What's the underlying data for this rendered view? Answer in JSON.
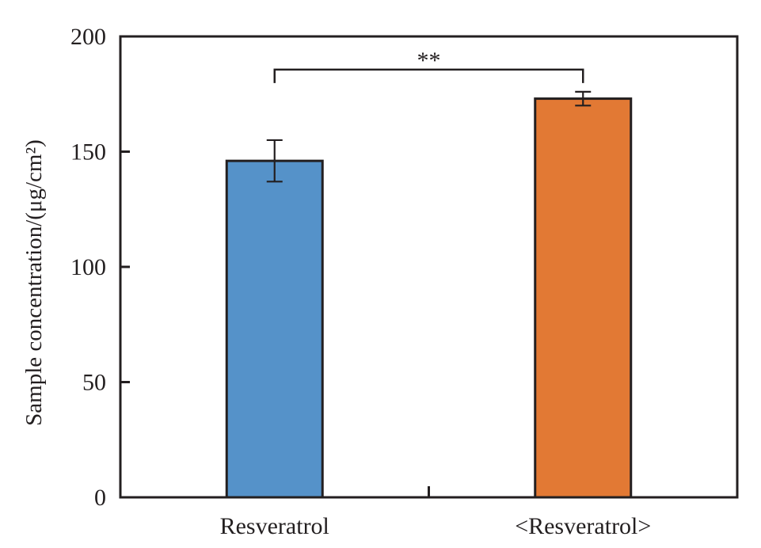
{
  "chart_data": {
    "type": "bar",
    "categories": [
      "Resveratrol",
      "<Resveratrol>"
    ],
    "values": [
      146,
      173
    ],
    "errors": [
      9,
      3
    ],
    "colors": [
      "#5592c9",
      "#e27934"
    ],
    "ylabel": "Sample concentration/(μg/cm²)",
    "ylim": [
      0,
      200
    ],
    "yticks": [
      0,
      50,
      100,
      150,
      200
    ],
    "grid": false,
    "significance": {
      "from": "Resveratrol",
      "to": "<Resveratrol>",
      "label": "**"
    }
  }
}
